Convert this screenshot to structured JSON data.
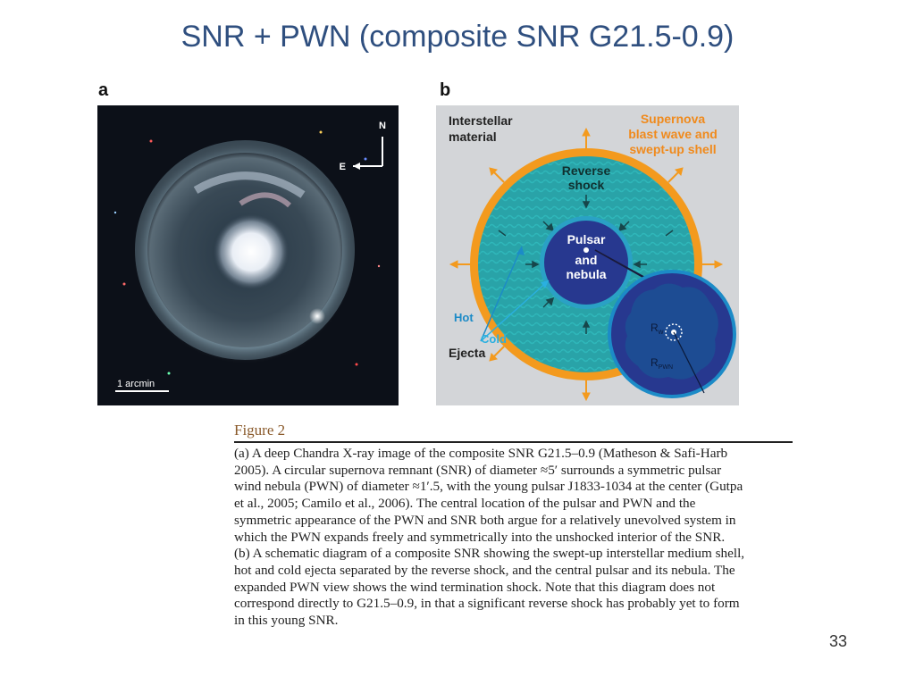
{
  "slide": {
    "title": "SNR + PWN (composite SNR G21.5-0.9)",
    "page_number": "33"
  },
  "panel_a": {
    "label": "a",
    "compass_n": "N",
    "compass_e": "E",
    "scale_label": "1 arcmin"
  },
  "panel_b": {
    "label": "b",
    "interstellar_material": [
      "Interstellar",
      "material"
    ],
    "supernova_blast": [
      "Supernova",
      "blast wave and",
      "swept-up shell"
    ],
    "reverse_shock": [
      "Reverse",
      "shock"
    ],
    "pulsar_nebula": [
      "Pulsar",
      "and",
      "nebula"
    ],
    "hot": "Hot",
    "cold": "Cold",
    "ejecta": "Ejecta",
    "rw_main": "R",
    "rw_sub": "w",
    "rpwn_main": "R",
    "rpwn_sub": "PWN",
    "colors": {
      "background": "#d3d5d8",
      "shell": "#f39a1e",
      "ejecta_fill": "#29a3a8",
      "nebula_fill": "#27388f",
      "label_blue": "#1c8bc7",
      "label_orange": "#f08a1c"
    }
  },
  "caption": {
    "figure_title": "Figure 2",
    "lines": [
      "(a) A deep Chandra X-ray image of the composite SNR G21.5–0.9 (Matheson & Safi-Harb",
      "2005). A circular supernova remnant (SNR) of diameter ≈5′ surrounds a symmetric pulsar",
      "wind nebula (PWN) of diameter ≈1′.5, with the young pulsar J1833-1034 at the center (Gutpa",
      "et al., 2005; Camilo et al., 2006). The central location of the pulsar and PWN and the",
      "symmetric appearance of the PWN and SNR both argue for a relatively unevolved system in",
      "which the PWN expands freely and symmetrically into the unshocked interior of the SNR.",
      "(b) A schematic diagram of a composite SNR showing the swept-up interstellar medium shell,",
      "hot and cold ejecta separated by the reverse shock, and the central pulsar and its nebula. The",
      "expanded PWN view shows the wind termination shock. Note that this diagram does not",
      "correspond directly to G21.5–0.9, in that a significant reverse shock has probably yet to form",
      "in this young SNR."
    ]
  }
}
